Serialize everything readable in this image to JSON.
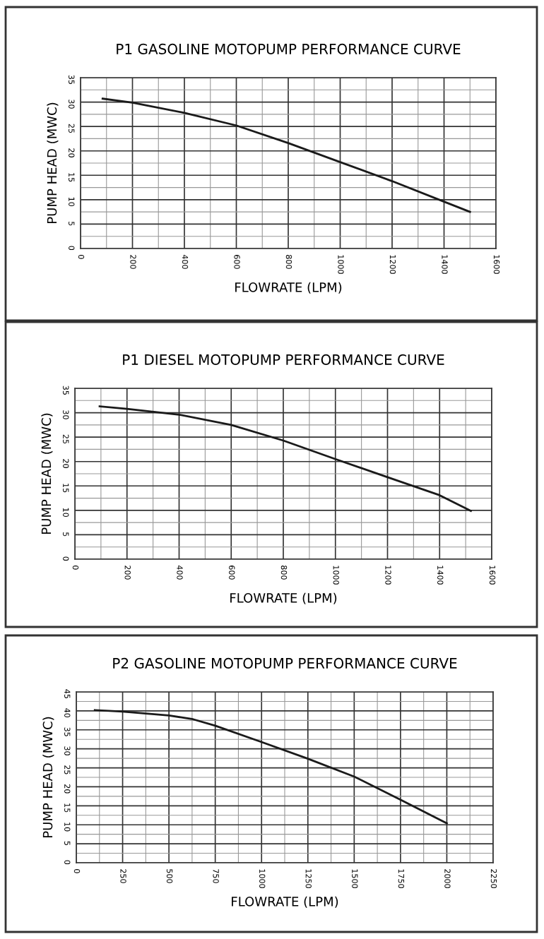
{
  "chart_data": [
    {
      "type": "line",
      "title": "P1 GASOLINE MOTOPUMP PERFORMANCE CURVE",
      "xlabel": "FLOWRATE (LPM)",
      "ylabel": "PUMP HEAD (MWC)",
      "grid": true,
      "xlim": [
        0,
        1600
      ],
      "xticks": [
        0,
        200,
        400,
        600,
        800,
        1000,
        1200,
        1400,
        1600
      ],
      "ylim": [
        0,
        35
      ],
      "yticks": [
        0,
        5,
        10,
        15,
        20,
        25,
        30,
        35
      ],
      "series": [
        {
          "color": "#1a1a1a",
          "x": [
            85,
            200,
            400,
            600,
            800,
            1000,
            1200,
            1400,
            1500
          ],
          "values": [
            30.7,
            29.9,
            27.8,
            25.2,
            21.6,
            17.7,
            13.8,
            9.6,
            7.5
          ]
        }
      ]
    },
    {
      "type": "line",
      "title": "P1 DIESEL MOTOPUMP PERFORMANCE CURVE",
      "xlabel": "FLOWRATE (LPM)",
      "ylabel": "PUMP HEAD (MWC)",
      "grid": true,
      "xlim": [
        0,
        1600
      ],
      "xticks": [
        0,
        200,
        400,
        600,
        800,
        1000,
        1200,
        1400,
        1600
      ],
      "ylim": [
        0,
        35
      ],
      "yticks": [
        0,
        5,
        10,
        15,
        20,
        25,
        30,
        35
      ],
      "series": [
        {
          "color": "#1a1a1a",
          "x": [
            95,
            200,
            400,
            600,
            800,
            1000,
            1200,
            1400,
            1520
          ],
          "values": [
            31.3,
            30.8,
            29.6,
            27.5,
            24.3,
            20.5,
            16.8,
            13.1,
            9.9
          ]
        }
      ]
    },
    {
      "type": "line",
      "title": "P2 GASOLINE MOTOPUMP PERFORMANCE CURVE",
      "xlabel": "FLOWRATE (LPM)",
      "ylabel": "PUMP HEAD (MWC)",
      "grid": true,
      "xlim": [
        0,
        2250
      ],
      "xticks": [
        0,
        250,
        500,
        750,
        1000,
        1250,
        1500,
        1750,
        2000,
        2250
      ],
      "ylim": [
        0,
        45
      ],
      "yticks": [
        0,
        5,
        10,
        15,
        20,
        25,
        30,
        35,
        40,
        45
      ],
      "series": [
        {
          "color": "#1a1a1a",
          "x": [
            100,
            250,
            500,
            630,
            750,
            1000,
            1250,
            1500,
            1750,
            2000
          ],
          "values": [
            40.2,
            39.8,
            38.8,
            37.8,
            36.1,
            31.8,
            27.4,
            22.7,
            16.6,
            10.4
          ]
        }
      ]
    }
  ]
}
